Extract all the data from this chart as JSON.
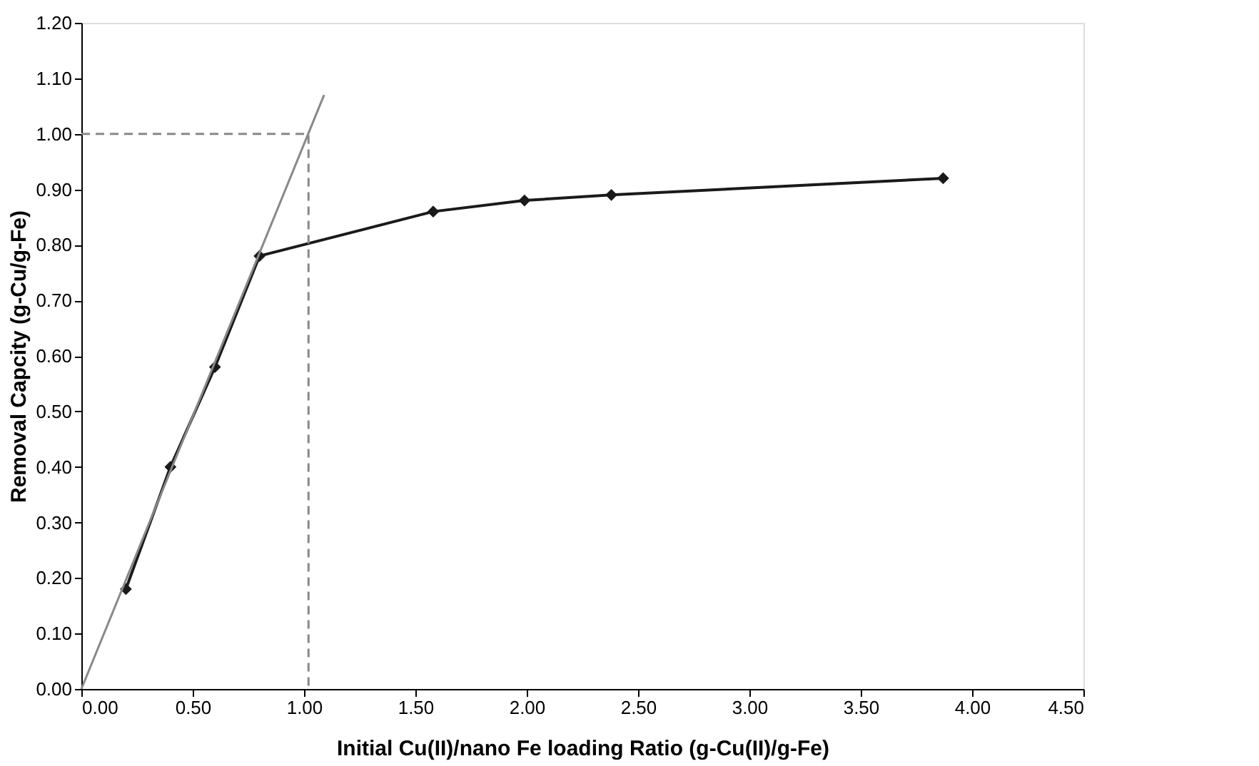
{
  "chart_data": {
    "type": "line",
    "xlabel": "Initial Cu(II)/nano Fe loading Ratio (g-Cu(II)/g-Fe)",
    "ylabel": "Removal Capcity (g-Cu/g-Fe)",
    "xlim": [
      0,
      4.5
    ],
    "ylim": [
      0,
      1.2
    ],
    "xticks": [
      {
        "value": 0,
        "label": "0.00"
      },
      {
        "value": 0.5,
        "label": "0.50"
      },
      {
        "value": 1,
        "label": "1.00"
      },
      {
        "value": 1.5,
        "label": "1.50"
      },
      {
        "value": 2,
        "label": "2.00"
      },
      {
        "value": 2.5,
        "label": "2.50"
      },
      {
        "value": 3,
        "label": "3.00"
      },
      {
        "value": 3.5,
        "label": "3.50"
      },
      {
        "value": 4,
        "label": "4.00"
      },
      {
        "value": 4.5,
        "label": "4.50"
      }
    ],
    "yticks": [
      {
        "value": 0,
        "label": "0.00"
      },
      {
        "value": 0.1,
        "label": "0.10"
      },
      {
        "value": 0.2,
        "label": "0.20"
      },
      {
        "value": 0.3,
        "label": "0.30"
      },
      {
        "value": 0.4,
        "label": "0.40"
      },
      {
        "value": 0.5,
        "label": "0.50"
      },
      {
        "value": 0.6,
        "label": "0.60"
      },
      {
        "value": 0.7,
        "label": "0.70"
      },
      {
        "value": 0.8,
        "label": "0.80"
      },
      {
        "value": 0.9,
        "label": "0.90"
      },
      {
        "value": 1,
        "label": "1.00"
      },
      {
        "value": 1.1,
        "label": "1.10"
      },
      {
        "value": 1.2,
        "label": "1.20"
      }
    ],
    "grid": false,
    "series": [
      {
        "color": "#1a1a1a",
        "marker": "diamond",
        "line_style": "solid",
        "x": [
          0.2,
          0.4,
          0.6,
          0.8,
          1.58,
          1.99,
          2.38,
          3.87
        ],
        "values": [
          0.18,
          0.4,
          0.58,
          0.78,
          0.86,
          0.88,
          0.89,
          0.92
        ]
      },
      {
        "color": "#888888",
        "marker": "none",
        "line_style": "solid",
        "x": [
          0,
          1.09
        ],
        "values": [
          0,
          1.07
        ]
      },
      {
        "color": "#888888",
        "marker": "none",
        "line_style": "dashed",
        "x": [
          0,
          1.02,
          1.02
        ],
        "values": [
          1.0,
          1.0,
          0
        ]
      }
    ]
  }
}
